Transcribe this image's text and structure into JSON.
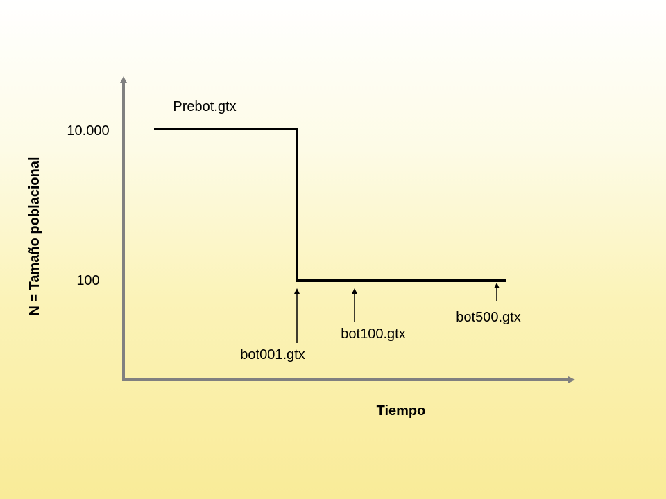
{
  "diagram": {
    "y_axis_label": "N = Tamaño poblacional",
    "x_axis_label": "Tiempo",
    "y_ticks": [
      "10.000",
      "100"
    ],
    "labels": {
      "prebot": "Prebot.gtx",
      "bot001": "bot001.gtx",
      "bot100": "bot100.gtx",
      "bot500": "bot500.gtx"
    },
    "colors": {
      "axis": "#808080",
      "line": "#000000",
      "background_top": "#ffffff",
      "background_bottom": "#f9eb98"
    }
  }
}
